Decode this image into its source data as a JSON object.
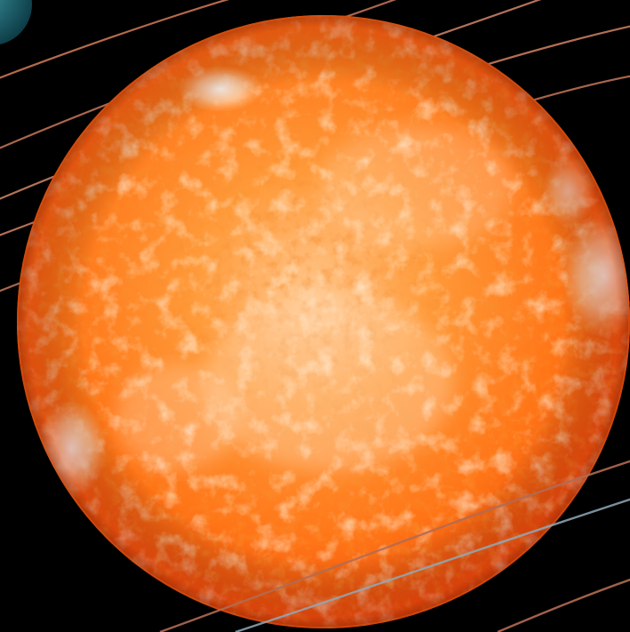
{
  "scene": {
    "subject": "sun",
    "colors": {
      "background": "#000000",
      "photosphere_base": "#ff6a10",
      "photosphere_mid": "#ff8a2a",
      "photosphere_dark": "#f04a08",
      "faculae": "#fff4e6",
      "limb": "#d8400a",
      "orbit_line": "#b46a4c",
      "orbit_line_blue": "#6fa3c4",
      "planet": "#1f6f7c"
    },
    "elements": {
      "planet_partial": "planet-disc",
      "orbit_paths": "orbit-path"
    }
  }
}
